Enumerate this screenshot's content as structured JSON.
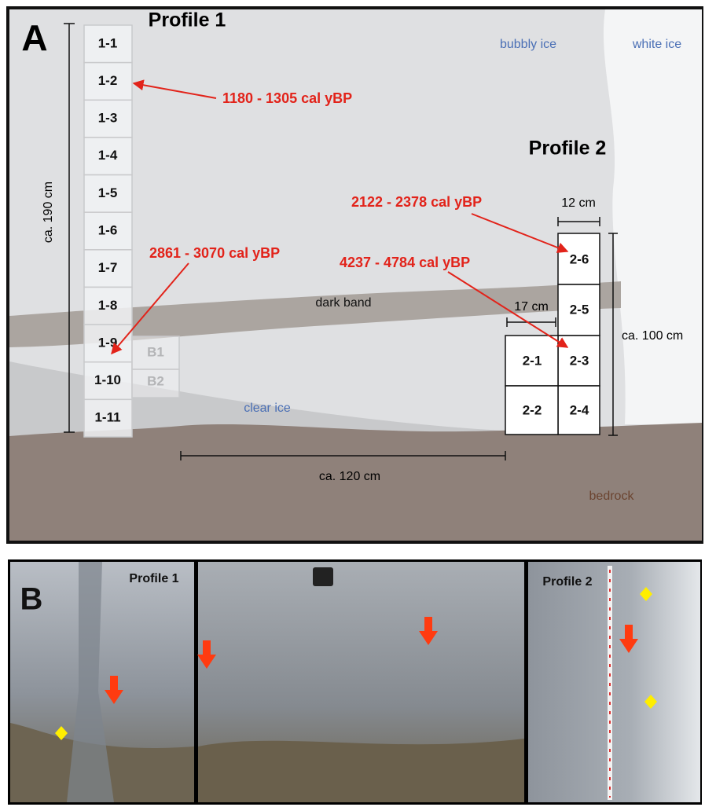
{
  "panel_a": {
    "label": "A",
    "profile_1": {
      "title": "Profile 1",
      "samples": [
        "1-1",
        "1-2",
        "1-3",
        "1-4",
        "1-5",
        "1-6",
        "1-7",
        "1-8",
        "1-9",
        "1-10",
        "1-11"
      ],
      "side_samples": [
        "B1",
        "B2"
      ]
    },
    "profile_2": {
      "title": "Profile 2",
      "samples": [
        "2-6",
        "2-5",
        "2-3",
        "2-4",
        "2-1",
        "2-2"
      ]
    },
    "dates": [
      "1180 - 1305 cal yBP",
      "2861 - 3070 cal yBP",
      "2122 - 2378 cal yBP",
      "4237 - 4784 cal yBP"
    ],
    "zones": [
      "bubbly ice",
      "white ice",
      "dark band",
      "clear ice",
      "bedrock"
    ],
    "dimensions": [
      "ca. 190 cm",
      "12 cm",
      "17 cm",
      "ca. 100 cm",
      "ca. 120 cm"
    ]
  },
  "panel_b": {
    "label": "B",
    "photo_labels": [
      "Profile 1",
      "Profile 2"
    ]
  }
}
